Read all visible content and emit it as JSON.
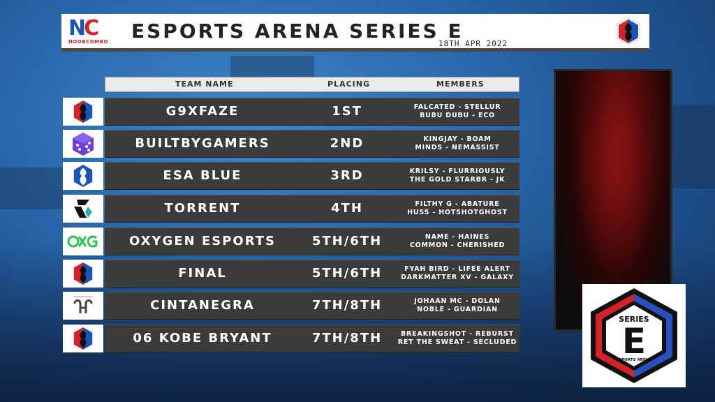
{
  "header": {
    "logo_letters_n": "N",
    "logo_letters_c": "C",
    "logo_sub": "NOOBCOMBO",
    "title": "ESPORTS ARENA SERIES E",
    "date": "18TH APR 2022"
  },
  "columns": {
    "team": "TEAM NAME",
    "placing": "PLACING",
    "members": "MEMBERS"
  },
  "rows": [
    {
      "team": "G9XFAZE",
      "placing": "1ST",
      "members1": "FALCATED - STELLUR",
      "members2": "BUBU DUBU - ECO",
      "logo_icon": "esa-red-blue-icon"
    },
    {
      "team": "BUILTBYGAMERS",
      "placing": "2ND",
      "members1": "KINGJAY - BOAM",
      "members2": "MINDS - NEMASSIST",
      "logo_icon": "purple-dice-icon"
    },
    {
      "team": "ESA BLUE",
      "placing": "3RD",
      "members1": "KRILSY - FLURRIOUSLY",
      "members2": "THE GOLD STARBR - JK",
      "logo_icon": "esa-blue-icon"
    },
    {
      "team": "TORRENT",
      "placing": "4TH",
      "members1": "FILTHY G - ABATURE",
      "members2": "HUSS - HOTSHOTGHOST",
      "logo_icon": "torrent-icon"
    },
    {
      "team": "OXYGEN ESPORTS",
      "placing": "5TH/6TH",
      "members1": "NAME - HAINES",
      "members2": "COMMON - CHERISHED",
      "logo_icon": "oxg-icon"
    },
    {
      "team": "FINAL",
      "placing": "5TH/6TH",
      "members1": "FYAH BIRD - LIFEE ALERT",
      "members2": "DARKMATTER XV - GALAXY",
      "logo_icon": "esa-red-blue-icon"
    },
    {
      "team": "CINTANEGRA",
      "placing": "7TH/8TH",
      "members1": "JOHAAN MC - DOLAN",
      "members2": "NOBLE - GUARDIAN",
      "logo_icon": "cintanegra-icon"
    },
    {
      "team": "06 KOBE BRYANT",
      "placing": "7TH/8TH",
      "members1": "BREAKINGSHOT - REBURST",
      "members2": "RET THE SWEAT - SECLUDED",
      "logo_icon": "esa-red-blue-icon"
    }
  ],
  "series_badge": {
    "top": "SERIES",
    "letter": "E",
    "bottom": "ESPORTS ARENA"
  },
  "colors": {
    "accent_red": "#d2232a",
    "accent_blue": "#1b54b8",
    "row_bg": "#3b3b3b"
  }
}
